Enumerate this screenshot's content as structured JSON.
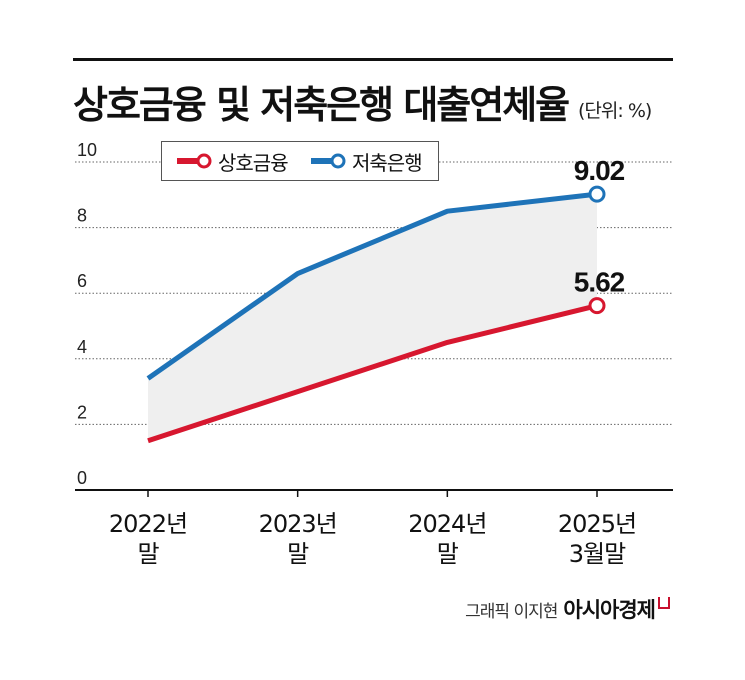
{
  "header": {
    "title": "상호금융 및 저축은행 대출연체율",
    "unit": "(단위: %)"
  },
  "legend": [
    {
      "name": "상호금융",
      "color": "#d7172f"
    },
    {
      "name": "저축은행",
      "color": "#1e73b8"
    }
  ],
  "chart_data": {
    "type": "line",
    "title": "상호금융 및 저축은행 대출연체율",
    "ylabel": "(단위: %)",
    "ylim": [
      0,
      10
    ],
    "yticks": [
      0,
      2,
      4,
      6,
      8,
      10
    ],
    "grid": true,
    "legend_position": "top-left",
    "categories": [
      [
        "2022년",
        "말"
      ],
      [
        "2023년",
        "말"
      ],
      [
        "2024년",
        "말"
      ],
      [
        "2025년",
        "3월말"
      ]
    ],
    "series": [
      {
        "name": "저축은행",
        "color": "#1e73b8",
        "values": [
          3.4,
          6.6,
          8.5,
          9.02
        ],
        "end_label": "9.02"
      },
      {
        "name": "상호금융",
        "color": "#d7172f",
        "values": [
          1.5,
          3.0,
          4.5,
          5.62
        ],
        "end_label": "5.62"
      }
    ],
    "fill_between": true,
    "fill_color": "#efefef"
  },
  "credit": {
    "author": "그래픽 이지현",
    "brand": "아시아경제"
  }
}
